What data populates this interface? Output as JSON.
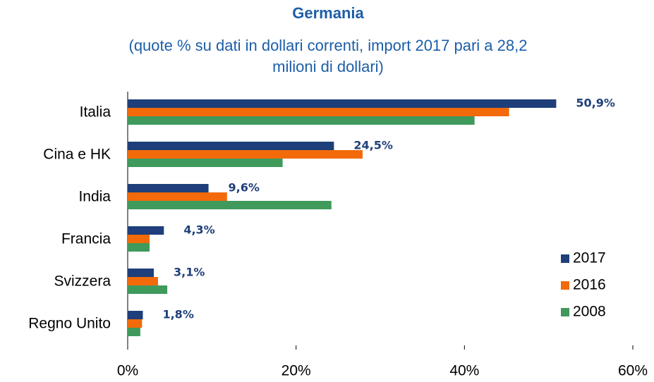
{
  "chart_data": {
    "type": "hbar",
    "title": "Germania",
    "subtitle": [
      "(quote % su dati in dollari correnti, import 2017 pari a  28,2",
      "milioni di dollari)"
    ],
    "categories": [
      "Italia",
      "Cina e HK",
      "India",
      "Francia",
      "Svizzera",
      "Regno Unito"
    ],
    "series": [
      {
        "name": "2017",
        "color": "#1f3f7a",
        "values": [
          50.9,
          24.5,
          9.6,
          4.3,
          3.1,
          1.8
        ],
        "value_labels": [
          "50,9%",
          "24,5%",
          "9,6%",
          "4,3%",
          "3,1%",
          "1,8%"
        ]
      },
      {
        "name": "2016",
        "color": "#f26a0a",
        "values": [
          45.3,
          27.9,
          11.8,
          2.6,
          3.6,
          1.7
        ]
      },
      {
        "name": "2008",
        "color": "#3f9a5c",
        "values": [
          41.2,
          18.4,
          24.2,
          2.6,
          4.7,
          1.5
        ]
      }
    ],
    "xlim": [
      0,
      60
    ],
    "xticks": [
      {
        "value": 0,
        "label": "0%"
      },
      {
        "value": 20,
        "label": "20%"
      },
      {
        "value": 40,
        "label": "40%"
      },
      {
        "value": 60,
        "label": "60%"
      }
    ],
    "legend": "right"
  }
}
